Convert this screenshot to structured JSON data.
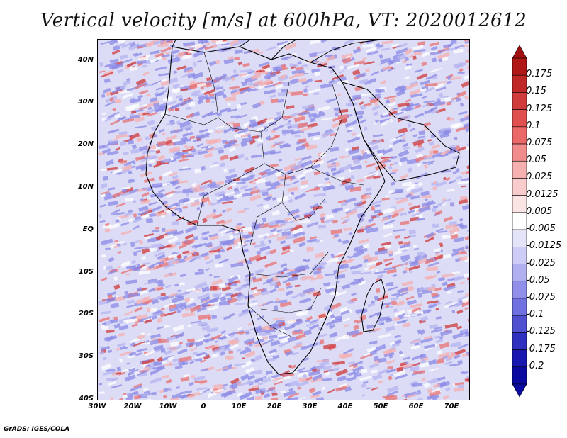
{
  "title": "Vertical velocity [m/s] at 600hPa, VT: 2020012612",
  "credit": "GrADS: IGES/COLA",
  "lat_labels": [
    "40N",
    "30N",
    "20N",
    "10N",
    "EQ",
    "10S",
    "20S",
    "30S",
    "40S"
  ],
  "lon_labels": [
    "30W",
    "20W",
    "10W",
    "0",
    "10E",
    "20E",
    "30E",
    "40E",
    "50E",
    "60E",
    "70E"
  ],
  "colorbar": {
    "labels": [
      "0.175",
      "0.15",
      "0.125",
      "0.1",
      "0.075",
      "0.05",
      "0.025",
      "0.0125",
      "0.005",
      "-0.005",
      "-0.0125",
      "-0.025",
      "-0.05",
      "-0.075",
      "-0.1",
      "-0.125",
      "-0.175",
      "-0.2"
    ],
    "colors": [
      "#b01818",
      "#c02828",
      "#d03c3c",
      "#e05050",
      "#ea6868",
      "#f08c8c",
      "#f6b0b0",
      "#f9cccc",
      "#fbe4e4",
      "#ffffff",
      "#e4e4f9",
      "#ccccf6",
      "#b0b0f0",
      "#9090ea",
      "#7070e0",
      "#5050d0",
      "#3030c0",
      "#1818b0",
      "#0a0aa0"
    ]
  },
  "colors": {
    "land_bg": "#eeeafa",
    "ocean_bg": "#dcdcf6",
    "up": "#e03c3c",
    "down": "#5a5ad8"
  }
}
